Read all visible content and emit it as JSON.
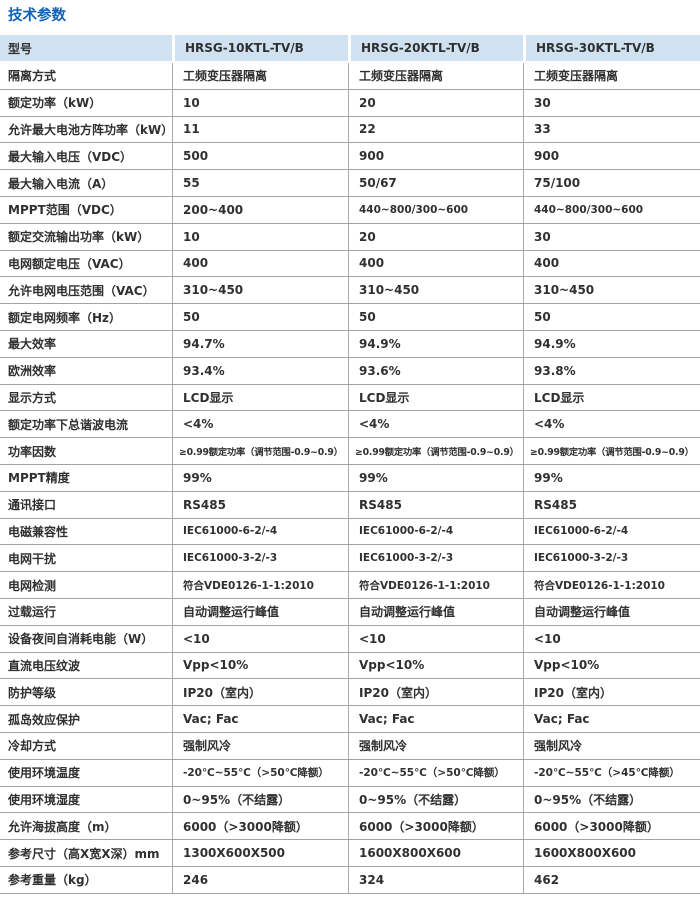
{
  "page": {
    "title": "技术参数"
  },
  "colors": {
    "title": "#0f62b4",
    "headerbg": "#d0e2f1",
    "gridline": "#a3a3a3",
    "vline": "#ababab",
    "text": "#303030"
  },
  "table": {
    "header": {
      "label": "型号",
      "models": [
        "HRSG-10KTL-TV/B",
        "HRSG-20KTL-TV/B",
        "HRSG-30KTL-TV/B"
      ]
    },
    "rows": [
      {
        "label": "隔离方式",
        "values": [
          "工频变压器隔离",
          "工频变压器隔离",
          "工频变压器隔离"
        ]
      },
      {
        "label": "额定功率（kW）",
        "values": [
          "10",
          "20",
          "30"
        ]
      },
      {
        "label": "允许最大电池方阵功率（kW）",
        "values": [
          "11",
          "22",
          "33"
        ]
      },
      {
        "label": "最大输入电压（VDC）",
        "values": [
          "500",
          "900",
          "900"
        ]
      },
      {
        "label": "最大输入电流（A）",
        "values": [
          "55",
          "50/67",
          "75/100"
        ]
      },
      {
        "label": "MPPT范围（VDC）",
        "values": [
          "200~400",
          "440~800/300~600",
          "440~800/300~600"
        ]
      },
      {
        "label": "额定交流输出功率（kW）",
        "values": [
          "10",
          "20",
          "30"
        ]
      },
      {
        "label": "电网额定电压（VAC）",
        "values": [
          "400",
          "400",
          "400"
        ]
      },
      {
        "label": "允许电网电压范围（VAC）",
        "values": [
          "310~450",
          "310~450",
          "310~450"
        ]
      },
      {
        "label": "额定电网频率（Hz）",
        "values": [
          "50",
          "50",
          "50"
        ]
      },
      {
        "label": "最大效率",
        "values": [
          "94.7%",
          "94.9%",
          "94.9%"
        ]
      },
      {
        "label": "欧洲效率",
        "values": [
          "93.4%",
          "93.6%",
          "93.8%"
        ]
      },
      {
        "label": "显示方式",
        "values": [
          "LCD显示",
          "LCD显示",
          "LCD显示"
        ]
      },
      {
        "label": "额定功率下总谐波电流",
        "values": [
          "<4%",
          "<4%",
          "<4%"
        ]
      },
      {
        "label": "功率因数",
        "values": [
          "≥0.99额定功率（调节范围-0.9~0.9）",
          "≥0.99额定功率（调节范围-0.9~0.9）",
          "≥0.99额定功率（调节范围-0.9~0.9）"
        ]
      },
      {
        "label": "MPPT精度",
        "values": [
          "99%",
          "99%",
          "99%"
        ]
      },
      {
        "label": "通讯接口",
        "values": [
          "RS485",
          "RS485",
          "RS485"
        ]
      },
      {
        "label": "电磁兼容性",
        "values": [
          "IEC61000-6-2/-4",
          "IEC61000-6-2/-4",
          "IEC61000-6-2/-4"
        ]
      },
      {
        "label": "电网干扰",
        "values": [
          "IEC61000-3-2/-3",
          "IEC61000-3-2/-3",
          "IEC61000-3-2/-3"
        ]
      },
      {
        "label": "电网检测",
        "values": [
          "符合VDE0126-1-1:2010",
          "符合VDE0126-1-1:2010",
          "符合VDE0126-1-1:2010"
        ]
      },
      {
        "label": "过载运行",
        "values": [
          "自动调整运行峰值",
          "自动调整运行峰值",
          "自动调整运行峰值"
        ]
      },
      {
        "label": "设备夜间自消耗电能（W）",
        "values": [
          "<10",
          "<10",
          "<10"
        ]
      },
      {
        "label": "直流电压纹波",
        "values": [
          "Vpp<10%",
          "Vpp<10%",
          "Vpp<10%"
        ]
      },
      {
        "label": "防护等级",
        "values": [
          "IP20（室内）",
          "IP20（室内）",
          "IP20（室内）"
        ]
      },
      {
        "label": "孤岛效应保护",
        "values": [
          "Vac; Fac",
          "Vac; Fac",
          "Vac; Fac"
        ]
      },
      {
        "label": "冷却方式",
        "values": [
          "强制风冷",
          "强制风冷",
          "强制风冷"
        ]
      },
      {
        "label": "使用环境温度",
        "values": [
          "-20℃~55℃（>50℃降额）",
          "-20℃~55℃（>50℃降额）",
          "-20℃~55℃（>45℃降额）"
        ]
      },
      {
        "label": "使用环境湿度",
        "values": [
          "0~95%（不结露）",
          "0~95%（不结露）",
          "0~95%（不结露）"
        ]
      },
      {
        "label": "允许海拔高度（m）",
        "values": [
          "6000（>3000降额）",
          "6000（>3000降额）",
          "6000（>3000降额）"
        ]
      },
      {
        "label": "参考尺寸（高X宽X深）mm",
        "values": [
          "1300X600X500",
          "1600X800X600",
          "1600X800X600"
        ]
      },
      {
        "label": "参考重量（kg）",
        "values": [
          "246",
          "324",
          "462"
        ]
      }
    ]
  }
}
